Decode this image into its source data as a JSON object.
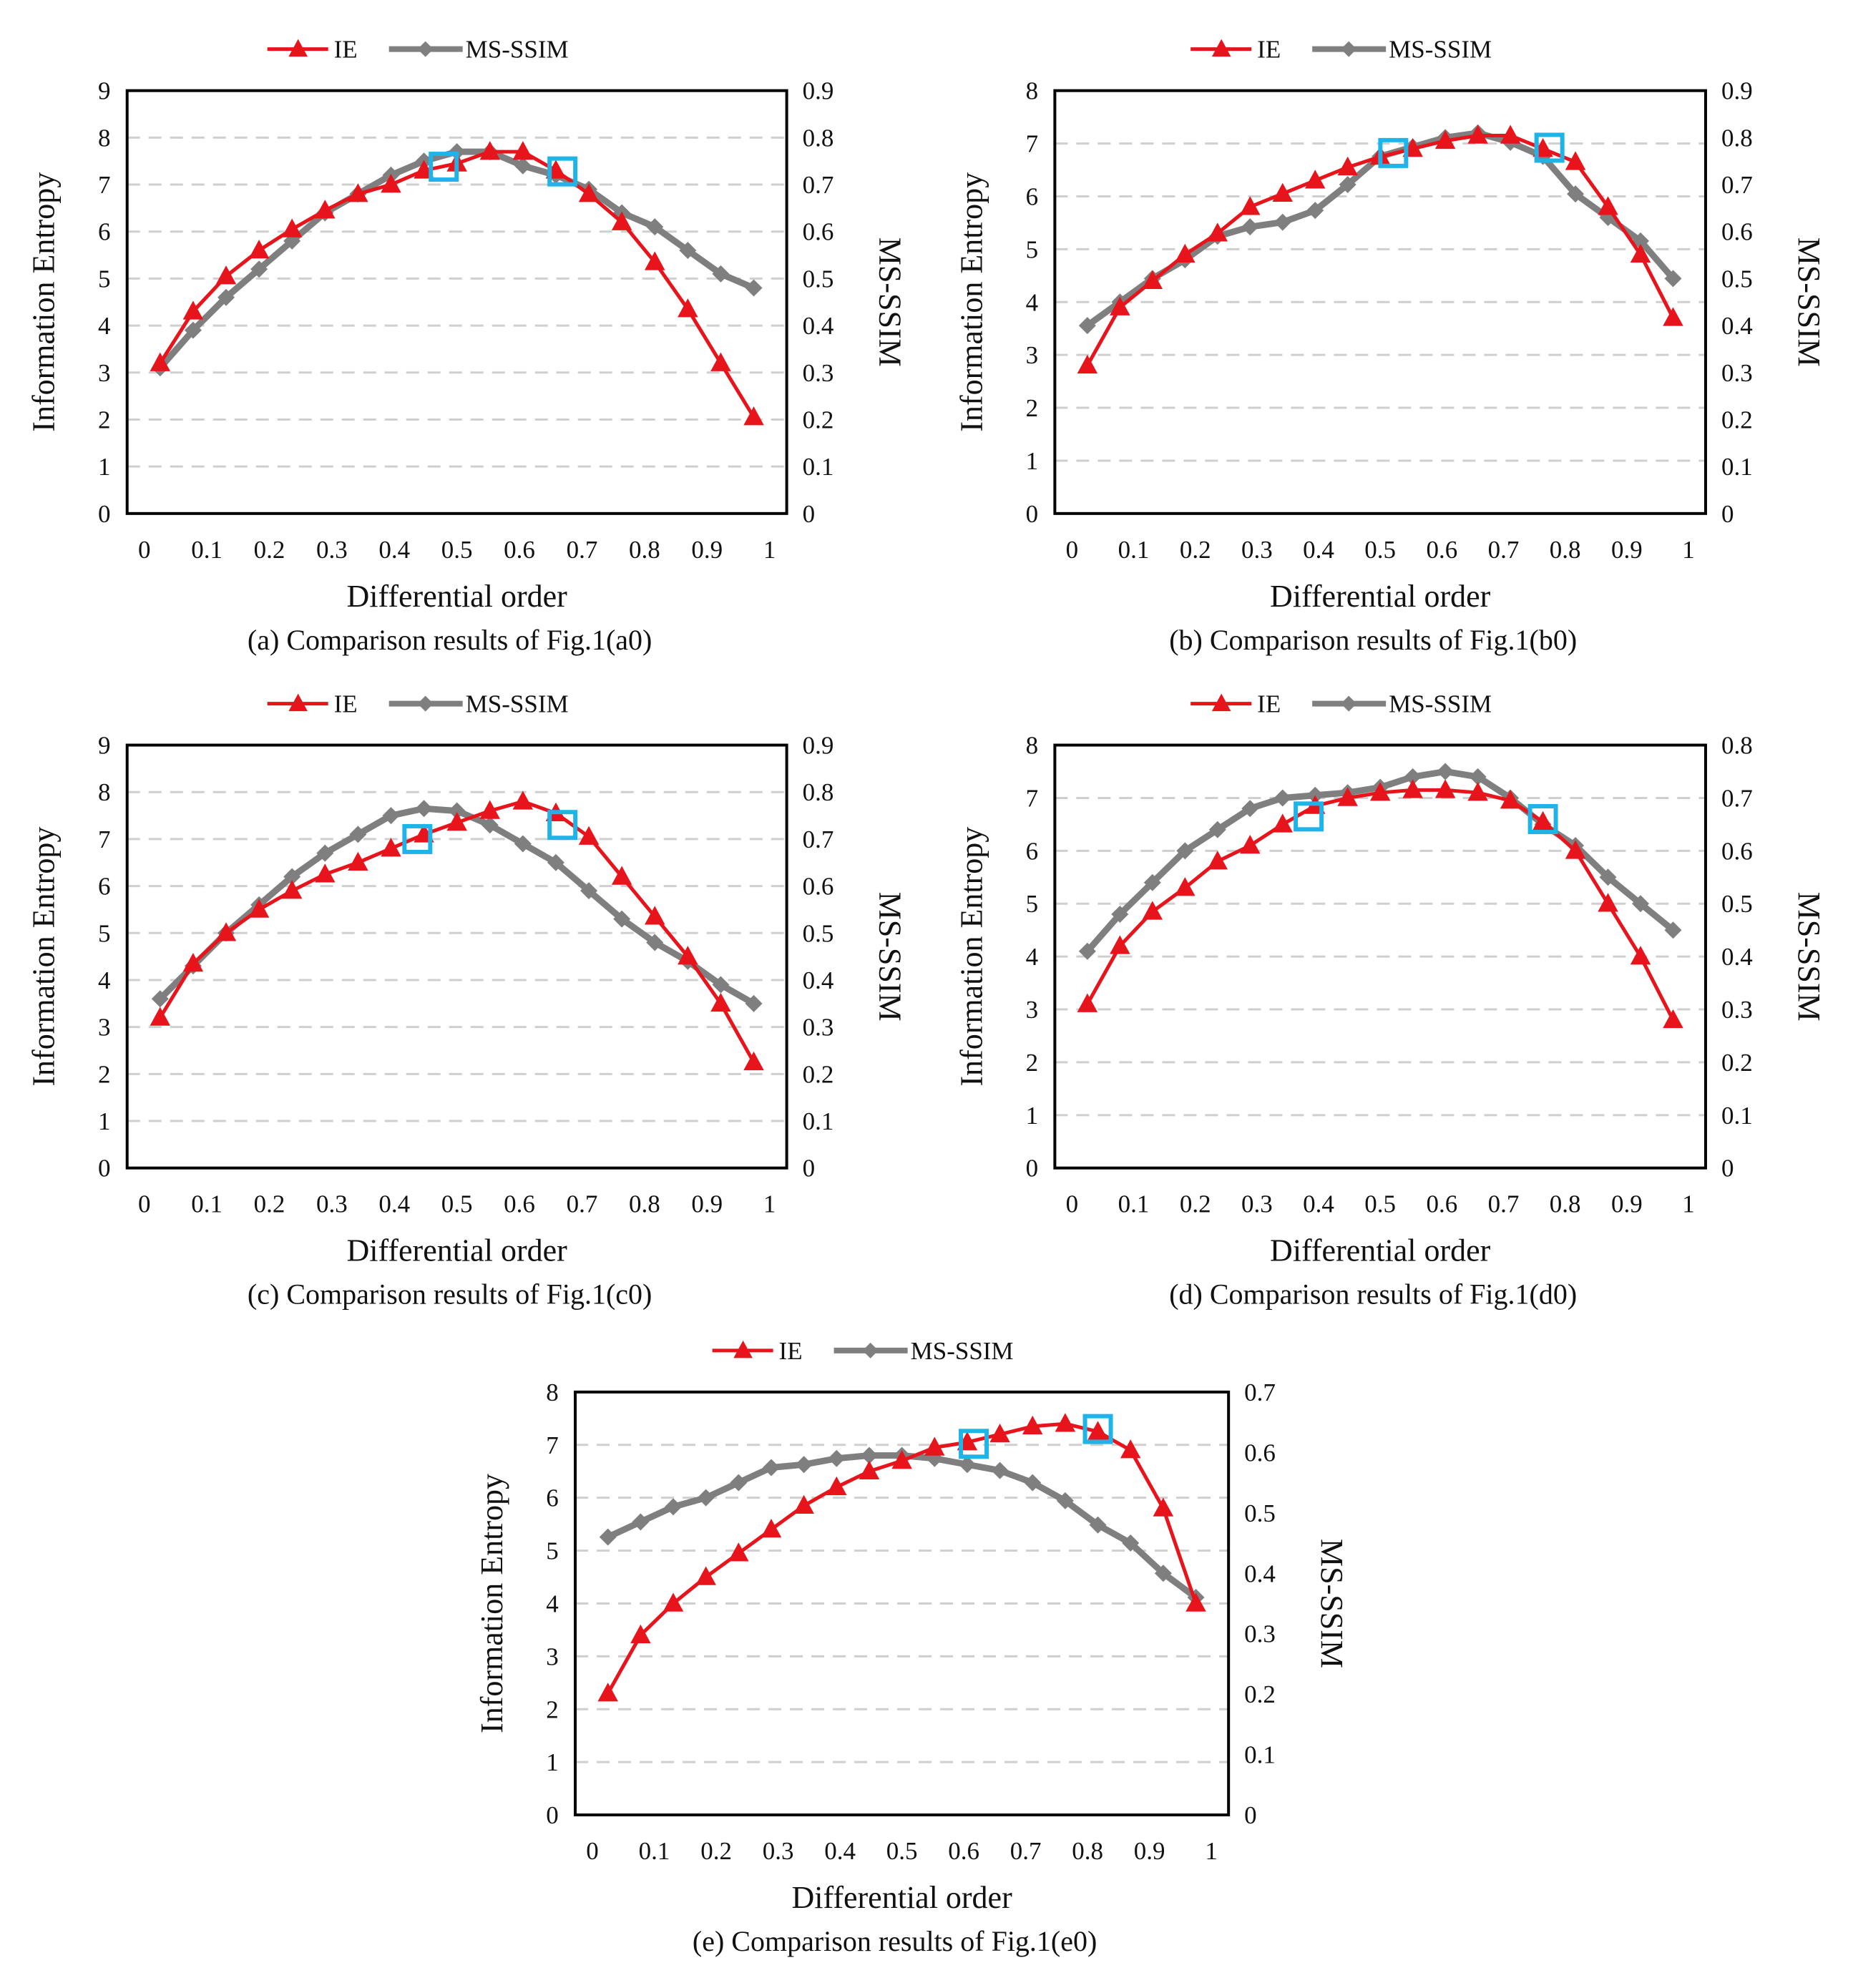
{
  "figure": {
    "chart_data": [
      {
        "type": "line",
        "caption": "(a) Comparison results of Fig.1(a0)",
        "xlabel": "Differential order",
        "ylabel": "Information Entropy",
        "y2label": "MS-SSIM",
        "xlim": [
          0,
          1
        ],
        "xticks": [
          "0",
          "0.1",
          "0.2",
          "0.3",
          "0.4",
          "0.5",
          "0.6",
          "0.7",
          "0.8",
          "0.9",
          "1"
        ],
        "ylim": [
          0,
          9
        ],
        "yticks": [
          "0",
          "1",
          "2",
          "3",
          "4",
          "5",
          "6",
          "7",
          "8",
          "9"
        ],
        "y2lim": [
          0,
          0.9
        ],
        "y2ticks": [
          "0",
          "0.1",
          "0.2",
          "0.3",
          "0.4",
          "0.5",
          "0.6",
          "0.7",
          "0.8",
          "0.9"
        ],
        "grid": true,
        "legend_position": "top",
        "x": [
          0.05,
          0.1,
          0.15,
          0.2,
          0.25,
          0.3,
          0.35,
          0.4,
          0.45,
          0.5,
          0.55,
          0.6,
          0.65,
          0.7,
          0.75,
          0.8,
          0.85,
          0.9,
          0.95
        ],
        "series": [
          {
            "name": "IE",
            "axis": "left",
            "color": "#e8141c",
            "marker": "triangle",
            "values": [
              3.2,
              4.3,
              5.05,
              5.6,
              6.05,
              6.45,
              6.8,
              7.0,
              7.3,
              7.45,
              7.7,
              7.7,
              7.3,
              6.8,
              6.2,
              5.35,
              4.35,
              3.2,
              2.05
            ]
          },
          {
            "name": "MS-SSIM",
            "axis": "right",
            "color": "#7f7f7f",
            "marker": "diamond",
            "values": [
              0.31,
              0.39,
              0.46,
              0.52,
              0.58,
              0.64,
              0.68,
              0.72,
              0.75,
              0.77,
              0.77,
              0.74,
              0.72,
              0.69,
              0.64,
              0.61,
              0.56,
              0.51,
              0.48
            ]
          }
        ],
        "highlight_boxes": [
          {
            "x": 0.48,
            "y": 7.38,
            "color": "#1fb4e8"
          },
          {
            "x": 0.66,
            "y": 7.28,
            "color": "#1fb4e8"
          }
        ]
      },
      {
        "type": "line",
        "caption": "(b) Comparison results of Fig.1(b0)",
        "xlabel": "Differential order",
        "ylabel": "Information Entropy",
        "y2label": "MS-SSIM",
        "xlim": [
          0,
          1
        ],
        "xticks": [
          "0",
          "0.1",
          "0.2",
          "0.3",
          "0.4",
          "0.5",
          "0.6",
          "0.7",
          "0.8",
          "0.9",
          "1"
        ],
        "ylim": [
          0,
          8
        ],
        "yticks": [
          "0",
          "1",
          "2",
          "3",
          "4",
          "5",
          "6",
          "7",
          "8"
        ],
        "y2lim": [
          0,
          0.9
        ],
        "y2ticks": [
          "0",
          "0.1",
          "0.2",
          "0.3",
          "0.4",
          "0.5",
          "0.6",
          "0.7",
          "0.8",
          "0.9"
        ],
        "grid": true,
        "legend_position": "top",
        "x": [
          0.05,
          0.1,
          0.15,
          0.2,
          0.25,
          0.3,
          0.35,
          0.4,
          0.45,
          0.5,
          0.55,
          0.6,
          0.65,
          0.7,
          0.75,
          0.8,
          0.85,
          0.9,
          0.95
        ],
        "series": [
          {
            "name": "IE",
            "axis": "left",
            "color": "#e8141c",
            "marker": "triangle",
            "values": [
              2.8,
              3.9,
              4.4,
              4.9,
              5.3,
              5.8,
              6.05,
              6.3,
              6.55,
              6.75,
              6.9,
              7.05,
              7.15,
              7.15,
              6.9,
              6.65,
              5.8,
              4.9,
              3.7
            ]
          },
          {
            "name": "MS-SSIM",
            "axis": "right",
            "color": "#7f7f7f",
            "marker": "diamond",
            "values": [
              0.4,
              0.45,
              0.5,
              0.54,
              0.59,
              0.61,
              0.62,
              0.645,
              0.7,
              0.76,
              0.78,
              0.8,
              0.81,
              0.79,
              0.76,
              0.68,
              0.63,
              0.58,
              0.5
            ]
          }
        ],
        "highlight_boxes": [
          {
            "x": 0.52,
            "y": 6.82,
            "color": "#1fb4e8"
          },
          {
            "x": 0.76,
            "y": 6.92,
            "color": "#1fb4e8"
          }
        ]
      },
      {
        "type": "line",
        "caption": "(c) Comparison results of Fig.1(c0)",
        "xlabel": "Differential order",
        "ylabel": "Information Entropy",
        "y2label": "MS-SSIM",
        "xlim": [
          0,
          1
        ],
        "xticks": [
          "0",
          "0.1",
          "0.2",
          "0.3",
          "0.4",
          "0.5",
          "0.6",
          "0.7",
          "0.8",
          "0.9",
          "1"
        ],
        "ylim": [
          0,
          9
        ],
        "yticks": [
          "0",
          "1",
          "2",
          "3",
          "4",
          "5",
          "6",
          "7",
          "8",
          "9"
        ],
        "y2lim": [
          0,
          0.9
        ],
        "y2ticks": [
          "0",
          "0.1",
          "0.2",
          "0.3",
          "0.4",
          "0.5",
          "0.6",
          "0.7",
          "0.8",
          "0.9"
        ],
        "grid": true,
        "legend_position": "top",
        "x": [
          0.05,
          0.1,
          0.15,
          0.2,
          0.25,
          0.3,
          0.35,
          0.4,
          0.45,
          0.5,
          0.55,
          0.6,
          0.65,
          0.7,
          0.75,
          0.8,
          0.85,
          0.9,
          0.95
        ],
        "series": [
          {
            "name": "IE",
            "axis": "left",
            "color": "#e8141c",
            "marker": "triangle",
            "values": [
              3.2,
              4.35,
              5.0,
              5.5,
              5.9,
              6.25,
              6.5,
              6.8,
              7.1,
              7.35,
              7.6,
              7.8,
              7.55,
              7.05,
              6.2,
              5.35,
              4.5,
              3.5,
              2.25
            ]
          },
          {
            "name": "MS-SSIM",
            "axis": "right",
            "color": "#7f7f7f",
            "marker": "diamond",
            "values": [
              0.36,
              0.43,
              0.5,
              0.56,
              0.62,
              0.67,
              0.71,
              0.75,
              0.765,
              0.76,
              0.73,
              0.69,
              0.65,
              0.59,
              0.53,
              0.48,
              0.44,
              0.39,
              0.35
            ]
          }
        ],
        "highlight_boxes": [
          {
            "x": 0.44,
            "y": 7.0,
            "color": "#1fb4e8"
          },
          {
            "x": 0.66,
            "y": 7.3,
            "color": "#1fb4e8"
          }
        ]
      },
      {
        "type": "line",
        "caption": "(d) Comparison results of Fig.1(d0)",
        "xlabel": "Differential order",
        "ylabel": "Information Entropy",
        "y2label": "MS-SSIM",
        "xlim": [
          0,
          1
        ],
        "xticks": [
          "0",
          "0.1",
          "0.2",
          "0.3",
          "0.4",
          "0.5",
          "0.6",
          "0.7",
          "0.8",
          "0.9",
          "1"
        ],
        "ylim": [
          0,
          8
        ],
        "yticks": [
          "0",
          "1",
          "2",
          "3",
          "4",
          "5",
          "6",
          "7",
          "8"
        ],
        "y2lim": [
          0,
          0.8
        ],
        "y2ticks": [
          "0",
          "0.1",
          "0.2",
          "0.3",
          "0.4",
          "0.5",
          "0.6",
          "0.7",
          "0.8"
        ],
        "grid": true,
        "legend_position": "top",
        "x": [
          0.05,
          0.1,
          0.15,
          0.2,
          0.25,
          0.3,
          0.35,
          0.4,
          0.45,
          0.5,
          0.55,
          0.6,
          0.65,
          0.7,
          0.75,
          0.8,
          0.85,
          0.9,
          0.95
        ],
        "series": [
          {
            "name": "IE",
            "axis": "left",
            "color": "#e8141c",
            "marker": "triangle",
            "values": [
              3.1,
              4.2,
              4.85,
              5.3,
              5.8,
              6.1,
              6.5,
              6.85,
              7.0,
              7.1,
              7.15,
              7.15,
              7.1,
              6.95,
              6.55,
              6.0,
              5.0,
              4.0,
              2.8
            ]
          },
          {
            "name": "MS-SSIM",
            "axis": "right",
            "color": "#7f7f7f",
            "marker": "diamond",
            "values": [
              0.41,
              0.48,
              0.54,
              0.6,
              0.64,
              0.68,
              0.7,
              0.705,
              0.71,
              0.72,
              0.74,
              0.75,
              0.74,
              0.7,
              0.65,
              0.61,
              0.55,
              0.5,
              0.45
            ]
          }
        ],
        "highlight_boxes": [
          {
            "x": 0.39,
            "y": 6.65,
            "color": "#1fb4e8"
          },
          {
            "x": 0.75,
            "y": 6.6,
            "color": "#1fb4e8"
          }
        ]
      },
      {
        "type": "line",
        "caption": "(e) Comparison results of Fig.1(e0)",
        "xlabel": "Differential order",
        "ylabel": "Information Entropy",
        "y2label": "MS-SSIM",
        "xlim": [
          0,
          1
        ],
        "xticks": [
          "0",
          "0.1",
          "0.2",
          "0.3",
          "0.4",
          "0.5",
          "0.6",
          "0.7",
          "0.8",
          "0.9",
          "1"
        ],
        "ylim": [
          0,
          8
        ],
        "yticks": [
          "0",
          "1",
          "2",
          "3",
          "4",
          "5",
          "6",
          "7",
          "8"
        ],
        "y2lim": [
          0,
          0.7
        ],
        "y2ticks": [
          "0",
          "0.1",
          "0.2",
          "0.3",
          "0.4",
          "0.5",
          "0.6",
          "0.7"
        ],
        "grid": true,
        "legend_position": "top",
        "x": [
          0.05,
          0.1,
          0.15,
          0.2,
          0.25,
          0.3,
          0.35,
          0.4,
          0.45,
          0.5,
          0.55,
          0.6,
          0.65,
          0.7,
          0.75,
          0.8,
          0.85,
          0.9,
          0.95
        ],
        "series": [
          {
            "name": "IE",
            "axis": "left",
            "color": "#e8141c",
            "marker": "triangle",
            "values": [
              2.3,
              3.4,
              4.0,
              4.5,
              4.95,
              5.4,
              5.85,
              6.2,
              6.5,
              6.7,
              6.95,
              7.05,
              7.2,
              7.35,
              7.4,
              7.25,
              6.9,
              5.8,
              4.0
            ]
          },
          {
            "name": "MS-SSIM",
            "axis": "right",
            "color": "#7f7f7f",
            "marker": "diamond",
            "values": [
              0.46,
              0.485,
              0.51,
              0.525,
              0.55,
              0.575,
              0.58,
              0.59,
              0.595,
              0.595,
              0.59,
              0.58,
              0.57,
              0.55,
              0.52,
              0.48,
              0.45,
              0.4,
              0.36
            ]
          }
        ],
        "highlight_boxes": [
          {
            "x": 0.61,
            "y": 7.02,
            "color": "#1fb4e8"
          },
          {
            "x": 0.8,
            "y": 7.3,
            "color": "#1fb4e8"
          }
        ]
      }
    ]
  }
}
